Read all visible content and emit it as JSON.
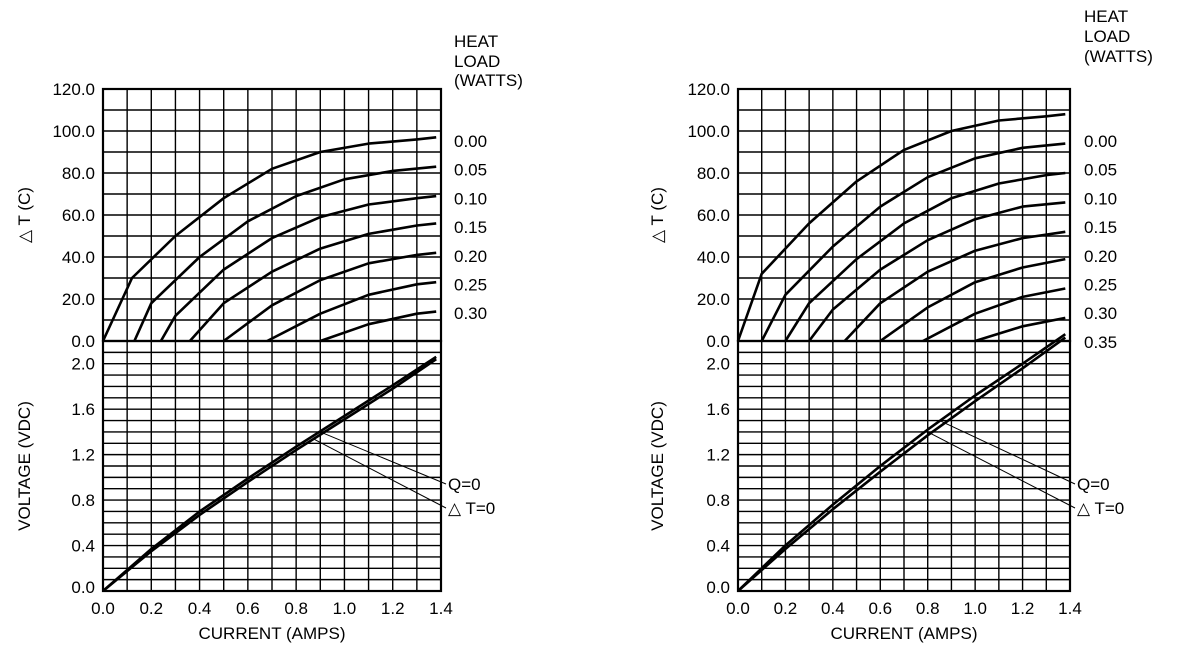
{
  "colors": {
    "line": "#000000",
    "background": "#ffffff"
  },
  "chart_data": [
    {
      "type": "line",
      "panel": "top",
      "figure": "left",
      "ylabel": "△ T  (C)",
      "xlim": [
        0,
        1.4
      ],
      "ylim": [
        0,
        120
      ],
      "grid": true,
      "y_ticks": [
        "0.0",
        "20.0",
        "40.0",
        "60.0",
        "80.0",
        "100.0",
        "120.0"
      ],
      "y_tick_values": [
        0,
        20,
        40,
        60,
        80,
        100,
        120
      ],
      "legend_title": [
        "HEAT",
        "LOAD",
        "(WATTS)"
      ],
      "legend_placement": "right",
      "series": [
        {
          "name": "0.00",
          "points": [
            [
              0.0,
              0
            ],
            [
              0.12,
              30
            ],
            [
              0.3,
              50
            ],
            [
              0.5,
              68
            ],
            [
              0.7,
              82
            ],
            [
              0.9,
              90
            ],
            [
              1.1,
              94
            ],
            [
              1.3,
              96
            ],
            [
              1.38,
              97
            ]
          ]
        },
        {
          "name": "0.05",
          "points": [
            [
              0.13,
              0
            ],
            [
              0.2,
              18
            ],
            [
              0.4,
              40
            ],
            [
              0.6,
              57
            ],
            [
              0.8,
              69
            ],
            [
              1.0,
              77
            ],
            [
              1.2,
              81
            ],
            [
              1.38,
              83
            ]
          ]
        },
        {
          "name": "0.10",
          "points": [
            [
              0.24,
              0
            ],
            [
              0.3,
              12
            ],
            [
              0.5,
              34
            ],
            [
              0.7,
              49
            ],
            [
              0.9,
              59
            ],
            [
              1.1,
              65
            ],
            [
              1.3,
              68
            ],
            [
              1.38,
              69
            ]
          ]
        },
        {
          "name": "0.15",
          "points": [
            [
              0.36,
              0
            ],
            [
              0.5,
              18
            ],
            [
              0.7,
              33
            ],
            [
              0.9,
              44
            ],
            [
              1.1,
              51
            ],
            [
              1.3,
              55
            ],
            [
              1.38,
              56
            ]
          ]
        },
        {
          "name": "0.20",
          "points": [
            [
              0.5,
              0
            ],
            [
              0.7,
              17
            ],
            [
              0.9,
              29
            ],
            [
              1.1,
              37
            ],
            [
              1.3,
              41
            ],
            [
              1.38,
              42
            ]
          ]
        },
        {
          "name": "0.25",
          "points": [
            [
              0.68,
              0
            ],
            [
              0.9,
              13
            ],
            [
              1.1,
              22
            ],
            [
              1.3,
              27
            ],
            [
              1.38,
              28
            ]
          ]
        },
        {
          "name": "0.30",
          "points": [
            [
              0.9,
              0
            ],
            [
              1.1,
              8
            ],
            [
              1.3,
              13
            ],
            [
              1.38,
              14
            ]
          ]
        }
      ]
    },
    {
      "type": "line",
      "panel": "bottom",
      "figure": "left",
      "xlabel": "CURRENT (AMPS)",
      "ylabel": "VOLTAGE (VDC)",
      "xlim": [
        0,
        1.4
      ],
      "ylim": [
        0,
        2.2
      ],
      "grid": true,
      "x_ticks": [
        "0.0",
        "0.2",
        "0.4",
        "0.6",
        "0.8",
        "1.0",
        "1.2",
        "1.4"
      ],
      "x_tick_values": [
        0,
        0.2,
        0.4,
        0.6,
        0.8,
        1.0,
        1.2,
        1.4
      ],
      "y_ticks": [
        "0.0",
        "0.4",
        "0.8",
        "1.2",
        "1.6",
        "2.0"
      ],
      "y_tick_values": [
        0,
        0.4,
        0.8,
        1.2,
        1.6,
        2.0
      ],
      "series": [
        {
          "name": "Q=0",
          "points": [
            [
              0,
              0
            ],
            [
              0.2,
              0.37
            ],
            [
              0.4,
              0.7
            ],
            [
              0.6,
              0.99
            ],
            [
              0.8,
              1.27
            ],
            [
              1.0,
              1.54
            ],
            [
              1.2,
              1.81
            ],
            [
              1.38,
              2.06
            ]
          ]
        },
        {
          "name": "△ T=0",
          "points": [
            [
              0,
              0
            ],
            [
              0.2,
              0.35
            ],
            [
              0.4,
              0.67
            ],
            [
              0.6,
              0.96
            ],
            [
              0.8,
              1.24
            ],
            [
              1.0,
              1.51
            ],
            [
              1.2,
              1.78
            ],
            [
              1.38,
              2.04
            ]
          ]
        }
      ],
      "annotations": [
        {
          "text": "Q=0",
          "x": 0.9,
          "y": 1.4
        },
        {
          "text": "△ T=0",
          "x": 0.87,
          "y": 1.34
        }
      ]
    },
    {
      "type": "line",
      "panel": "top",
      "figure": "right",
      "ylabel": "△ T  (C)",
      "xlim": [
        0,
        1.4
      ],
      "ylim": [
        0,
        120
      ],
      "grid": true,
      "y_ticks": [
        "0.0",
        "20.0",
        "40.0",
        "60.0",
        "80.0",
        "100.0",
        "120.0"
      ],
      "y_tick_values": [
        0,
        20,
        40,
        60,
        80,
        100,
        120
      ],
      "legend_title": [
        "HEAT",
        "LOAD",
        "(WATTS)"
      ],
      "legend_placement": "right",
      "series": [
        {
          "name": "0.00",
          "points": [
            [
              0.0,
              0
            ],
            [
              0.1,
              32
            ],
            [
              0.3,
              56
            ],
            [
              0.5,
              76
            ],
            [
              0.7,
              91
            ],
            [
              0.9,
              100
            ],
            [
              1.1,
              105
            ],
            [
              1.3,
              107
            ],
            [
              1.38,
              108
            ]
          ]
        },
        {
          "name": "0.05",
          "points": [
            [
              0.1,
              0
            ],
            [
              0.2,
              22
            ],
            [
              0.4,
              45
            ],
            [
              0.6,
              64
            ],
            [
              0.8,
              78
            ],
            [
              1.0,
              87
            ],
            [
              1.2,
              92
            ],
            [
              1.38,
              94
            ]
          ]
        },
        {
          "name": "0.10",
          "points": [
            [
              0.2,
              0
            ],
            [
              0.3,
              18
            ],
            [
              0.5,
              39
            ],
            [
              0.7,
              56
            ],
            [
              0.9,
              68
            ],
            [
              1.1,
              75
            ],
            [
              1.3,
              79
            ],
            [
              1.38,
              80
            ]
          ]
        },
        {
          "name": "0.15",
          "points": [
            [
              0.3,
              0
            ],
            [
              0.4,
              15
            ],
            [
              0.6,
              34
            ],
            [
              0.8,
              48
            ],
            [
              1.0,
              58
            ],
            [
              1.2,
              64
            ],
            [
              1.38,
              66
            ]
          ]
        },
        {
          "name": "0.20",
          "points": [
            [
              0.45,
              0
            ],
            [
              0.6,
              18
            ],
            [
              0.8,
              33
            ],
            [
              1.0,
              43
            ],
            [
              1.2,
              49
            ],
            [
              1.38,
              52
            ]
          ]
        },
        {
          "name": "0.25",
          "points": [
            [
              0.6,
              0
            ],
            [
              0.8,
              16
            ],
            [
              1.0,
              28
            ],
            [
              1.2,
              35
            ],
            [
              1.38,
              39
            ]
          ]
        },
        {
          "name": "0.30",
          "points": [
            [
              0.78,
              0
            ],
            [
              1.0,
              13
            ],
            [
              1.2,
              21
            ],
            [
              1.38,
              25
            ]
          ]
        },
        {
          "name": "0.35",
          "points": [
            [
              1.0,
              0
            ],
            [
              1.2,
              7
            ],
            [
              1.38,
              11
            ]
          ]
        }
      ]
    },
    {
      "type": "line",
      "panel": "bottom",
      "figure": "right",
      "xlabel": "CURRENT (AMPS)",
      "ylabel": "VOLTAGE (VDC)",
      "xlim": [
        0,
        1.4
      ],
      "ylim": [
        0,
        2.2
      ],
      "grid": true,
      "x_ticks": [
        "0.0",
        "0.2",
        "0.4",
        "0.6",
        "0.8",
        "1.0",
        "1.2",
        "1.4"
      ],
      "x_tick_values": [
        0,
        0.2,
        0.4,
        0.6,
        0.8,
        1.0,
        1.2,
        1.4
      ],
      "y_ticks": [
        "0.0",
        "0.4",
        "0.8",
        "1.2",
        "1.6",
        "2.0"
      ],
      "y_tick_values": [
        0,
        0.4,
        0.8,
        1.2,
        1.6,
        2.0
      ],
      "series": [
        {
          "name": "Q=0",
          "points": [
            [
              0,
              0
            ],
            [
              0.2,
              0.4
            ],
            [
              0.4,
              0.76
            ],
            [
              0.6,
              1.1
            ],
            [
              0.8,
              1.42
            ],
            [
              1.0,
              1.72
            ],
            [
              1.2,
              2.0
            ],
            [
              1.38,
              2.26
            ]
          ]
        },
        {
          "name": "△ T=0",
          "points": [
            [
              0,
              0
            ],
            [
              0.2,
              0.37
            ],
            [
              0.4,
              0.72
            ],
            [
              0.6,
              1.05
            ],
            [
              0.8,
              1.37
            ],
            [
              1.0,
              1.67
            ],
            [
              1.2,
              1.96
            ],
            [
              1.38,
              2.23
            ]
          ]
        }
      ],
      "annotations": [
        {
          "text": "Q=0",
          "x": 0.85,
          "y": 1.5
        },
        {
          "text": "△ T=0",
          "x": 0.8,
          "y": 1.4
        }
      ]
    }
  ]
}
